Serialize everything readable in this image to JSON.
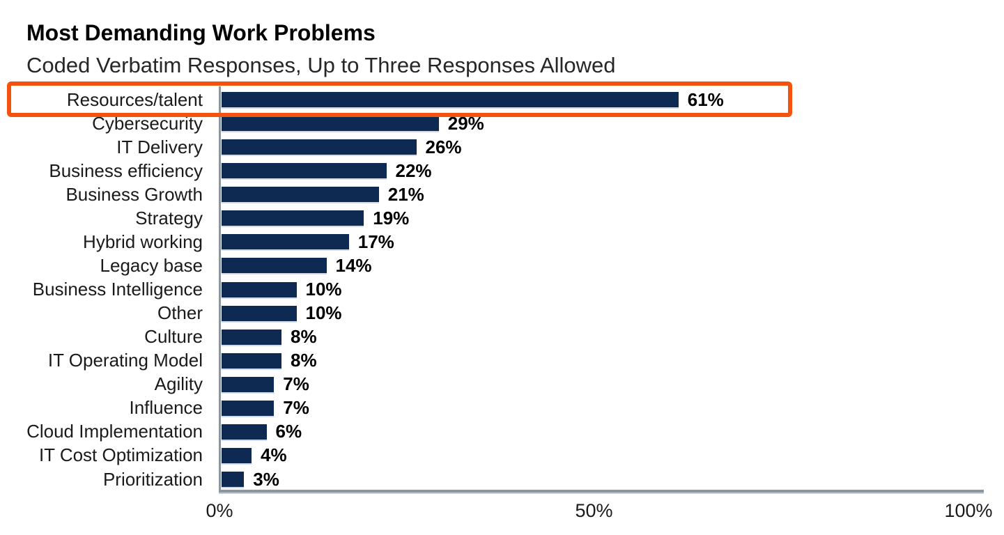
{
  "chart_data": {
    "type": "bar",
    "orientation": "horizontal",
    "title": "Most Demanding Work Problems",
    "subtitle": "Coded Verbatim Responses, Up to Three Responses Allowed",
    "categories": [
      "Resources/talent",
      "Cybersecurity",
      "IT Delivery",
      "Business efficiency",
      "Business Growth",
      "Strategy",
      "Hybrid working",
      "Legacy base",
      "Business Intelligence",
      "Other",
      "Culture",
      "IT Operating Model",
      "Agility",
      "Influence",
      "Cloud Implementation",
      "IT Cost Optimization",
      "Prioritization"
    ],
    "values": [
      61,
      29,
      26,
      22,
      21,
      19,
      17,
      14,
      10,
      10,
      8,
      8,
      7,
      7,
      6,
      4,
      3
    ],
    "value_labels": [
      "61%",
      "29%",
      "26%",
      "22%",
      "21%",
      "19%",
      "17%",
      "14%",
      "10%",
      "10%",
      "8%",
      "8%",
      "7%",
      "7%",
      "6%",
      "4%",
      "3%"
    ],
    "xlabel": "",
    "ylabel": "",
    "xlim": [
      0,
      100
    ],
    "x_ticks": [
      "0%",
      "50%",
      "100%"
    ],
    "x_tick_values": [
      0,
      50,
      100
    ],
    "grid": false,
    "legend": null,
    "bar_color": "#0e2a52",
    "axis_color": "#8d969c",
    "highlight": {
      "category": "Resources/talent",
      "box_color": "#f4530f"
    }
  }
}
